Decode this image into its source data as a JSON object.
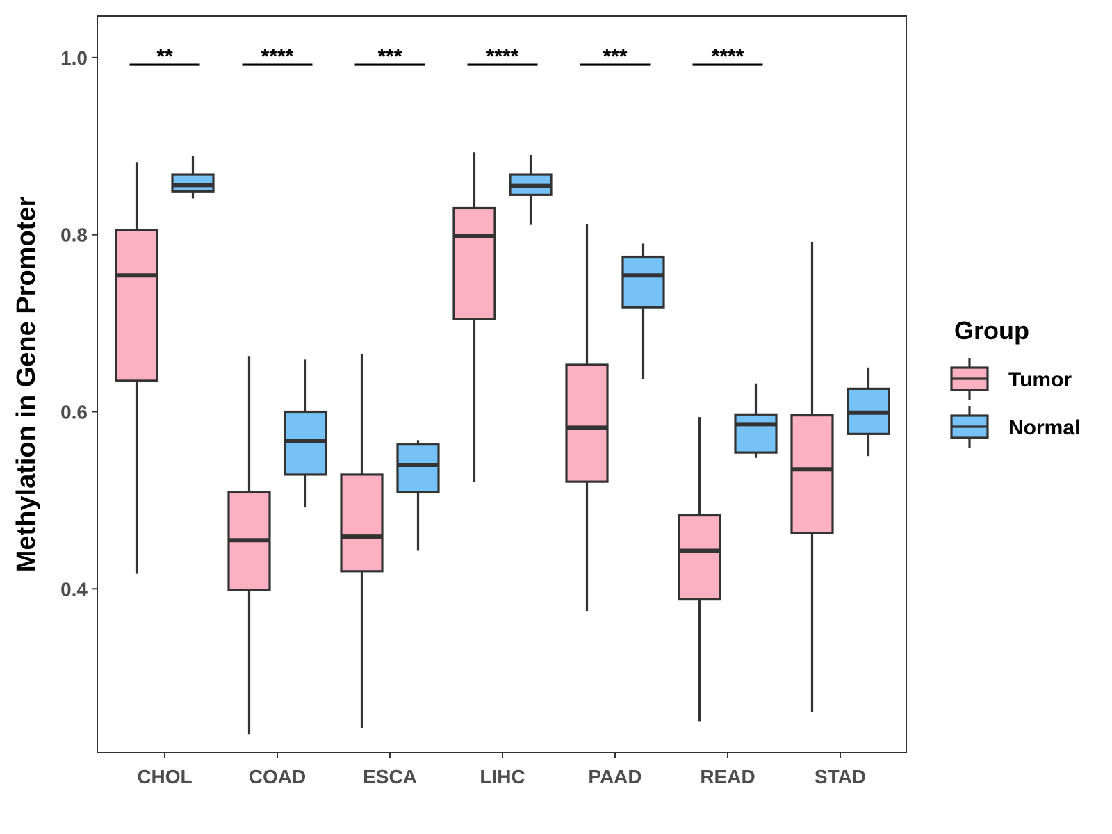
{
  "chart_data": {
    "type": "boxplot",
    "title": "",
    "xlabel": "",
    "ylabel": "Methylation in Gene Promoter",
    "ylim": [
      0.215,
      1.047
    ],
    "yticks": [
      0.4,
      0.6,
      0.8,
      1.0
    ],
    "ytick_labels": [
      "0.4",
      "0.6",
      "0.8",
      "1.0"
    ],
    "categories": [
      "CHOL",
      "COAD",
      "ESCA",
      "LIHC",
      "PAAD",
      "READ",
      "STAD"
    ],
    "legend": {
      "title": "Group",
      "position": "right",
      "entries": [
        {
          "name": "Tumor",
          "color": "#fbb1c2"
        },
        {
          "name": "Normal",
          "color": "#76c1f5"
        }
      ]
    },
    "series": [
      {
        "name": "Tumor",
        "color": "#fbb1c2",
        "boxes": [
          {
            "min": 0.417,
            "q1": 0.635,
            "median": 0.754,
            "q3": 0.805,
            "max": 0.882
          },
          {
            "min": 0.236,
            "q1": 0.399,
            "median": 0.455,
            "q3": 0.509,
            "max": 0.663
          },
          {
            "min": 0.243,
            "q1": 0.42,
            "median": 0.459,
            "q3": 0.529,
            "max": 0.665
          },
          {
            "min": 0.521,
            "q1": 0.705,
            "median": 0.799,
            "q3": 0.83,
            "max": 0.893
          },
          {
            "min": 0.375,
            "q1": 0.521,
            "median": 0.582,
            "q3": 0.653,
            "max": 0.812
          },
          {
            "min": 0.25,
            "q1": 0.388,
            "median": 0.443,
            "q3": 0.483,
            "max": 0.594
          },
          {
            "min": 0.261,
            "q1": 0.463,
            "median": 0.535,
            "q3": 0.596,
            "max": 0.792
          }
        ]
      },
      {
        "name": "Normal",
        "color": "#76c1f5",
        "boxes": [
          {
            "min": 0.841,
            "q1": 0.849,
            "median": 0.856,
            "q3": 0.868,
            "max": 0.889
          },
          {
            "min": 0.492,
            "q1": 0.529,
            "median": 0.567,
            "q3": 0.6,
            "max": 0.659
          },
          {
            "min": 0.443,
            "q1": 0.509,
            "median": 0.54,
            "q3": 0.563,
            "max": 0.568
          },
          {
            "min": 0.811,
            "q1": 0.845,
            "median": 0.855,
            "q3": 0.868,
            "max": 0.89
          },
          {
            "min": 0.637,
            "q1": 0.718,
            "median": 0.754,
            "q3": 0.775,
            "max": 0.79
          },
          {
            "min": 0.548,
            "q1": 0.554,
            "median": 0.586,
            "q3": 0.597,
            "max": 0.632
          },
          {
            "min": 0.55,
            "q1": 0.575,
            "median": 0.599,
            "q3": 0.626,
            "max": 0.65
          }
        ]
      }
    ],
    "annotations": [
      {
        "category": "CHOL",
        "label": "**",
        "y": 0.992
      },
      {
        "category": "COAD",
        "label": "****",
        "y": 0.992
      },
      {
        "category": "ESCA",
        "label": "***",
        "y": 0.992
      },
      {
        "category": "LIHC",
        "label": "****",
        "y": 0.992
      },
      {
        "category": "PAAD",
        "label": "***",
        "y": 0.992
      },
      {
        "category": "READ",
        "label": "****",
        "y": 0.992
      }
    ],
    "grid": false
  }
}
